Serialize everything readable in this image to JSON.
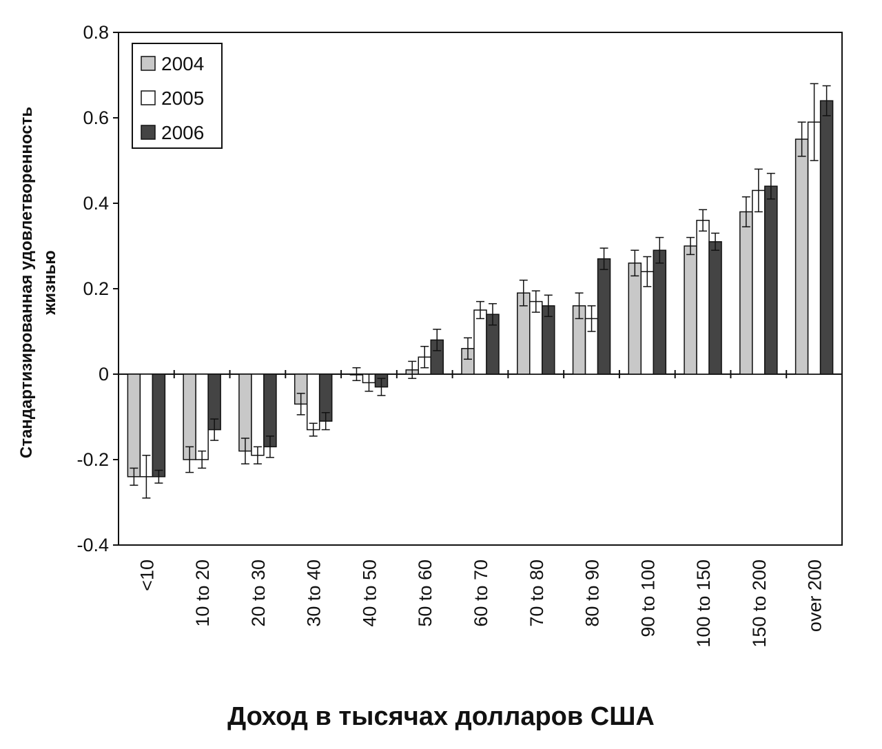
{
  "chart_data": {
    "type": "bar",
    "xlabel": "Доход в тысячах долларов  США",
    "ylabel_line1": "Стандартизированная удовлетворенность",
    "ylabel_line2": "жизнью",
    "ylim": [
      -0.4,
      0.8
    ],
    "yticks": [
      "0.8",
      "0.6",
      "0.4",
      "0.2",
      "0",
      "-0.2",
      "-0.4"
    ],
    "ytick_values": [
      0.8,
      0.6,
      0.4,
      0.2,
      0,
      -0.2,
      -0.4
    ],
    "grid": false,
    "legend_position": "top-left",
    "categories": [
      "<10",
      "10 to 20",
      "20 to 30",
      "30 to 40",
      "40 to 50",
      "50 to 60",
      "60 to 70",
      "70 to 80",
      "80 to 90",
      "90 to 100",
      "100 to 150",
      "150 to 200",
      "over 200"
    ],
    "series": [
      {
        "name": "2004",
        "color": "#c8c8c8",
        "values": [
          -0.24,
          -0.2,
          -0.18,
          -0.07,
          0.0,
          0.01,
          0.06,
          0.19,
          0.16,
          0.26,
          0.3,
          0.38,
          0.55
        ],
        "errors": [
          0.02,
          0.03,
          0.03,
          0.025,
          0.015,
          0.02,
          0.025,
          0.03,
          0.03,
          0.03,
          0.02,
          0.035,
          0.04
        ]
      },
      {
        "name": "2005",
        "color": "#ffffff",
        "values": [
          -0.24,
          -0.2,
          -0.19,
          -0.13,
          -0.02,
          0.04,
          0.15,
          0.17,
          0.13,
          0.24,
          0.36,
          0.43,
          0.59
        ],
        "errors": [
          0.05,
          0.02,
          0.02,
          0.015,
          0.02,
          0.025,
          0.02,
          0.025,
          0.03,
          0.035,
          0.025,
          0.05,
          0.09
        ]
      },
      {
        "name": "2006",
        "color": "#444444",
        "values": [
          -0.24,
          -0.13,
          -0.17,
          -0.11,
          -0.03,
          0.08,
          0.14,
          0.16,
          0.27,
          0.29,
          0.31,
          0.44,
          0.64
        ],
        "errors": [
          0.015,
          0.025,
          0.025,
          0.02,
          0.02,
          0.025,
          0.025,
          0.025,
          0.025,
          0.03,
          0.02,
          0.03,
          0.035
        ]
      }
    ]
  }
}
